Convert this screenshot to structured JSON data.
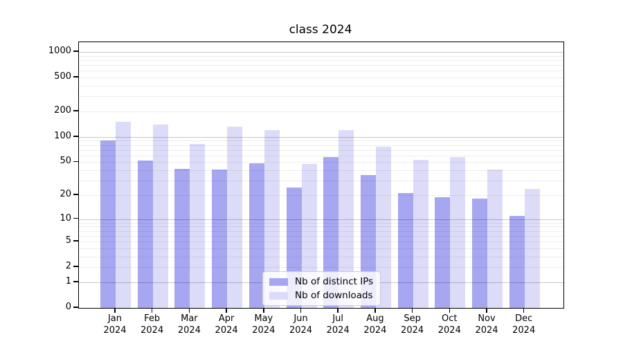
{
  "chart_data": {
    "type": "bar",
    "title": "class 2024",
    "categories": [
      "Jan",
      "Feb",
      "Mar",
      "Apr",
      "May",
      "Jun",
      "Jul",
      "Aug",
      "Sep",
      "Oct",
      "Nov",
      "Dec"
    ],
    "year_label": "2024",
    "series": [
      {
        "name": "Nb of distinct IPs",
        "key": "distinct-ips",
        "color": "#a6a6f1",
        "values": [
          90,
          52,
          42,
          41,
          49,
          25,
          58,
          35,
          21,
          19,
          18,
          11
        ]
      },
      {
        "name": "Nb of downloads",
        "key": "downloads",
        "color": "#dcdcf9",
        "values": [
          150,
          140,
          82,
          132,
          121,
          48,
          120,
          76,
          53,
          58,
          41,
          24
        ]
      }
    ],
    "yscale": "log1p",
    "yticks": [
      0,
      1,
      2,
      5,
      10,
      20,
      50,
      100,
      200,
      500,
      1000
    ],
    "major_grid_values": [
      1,
      10,
      100,
      1000
    ],
    "minor_grid_factors": [
      2,
      3,
      4,
      5,
      6,
      7,
      8,
      9
    ],
    "minor_grid_decades": [
      1,
      10,
      100
    ],
    "ylim": [
      0,
      1300
    ],
    "grid": true,
    "legend_position": "lower-center",
    "xlabel": "",
    "ylabel": ""
  }
}
